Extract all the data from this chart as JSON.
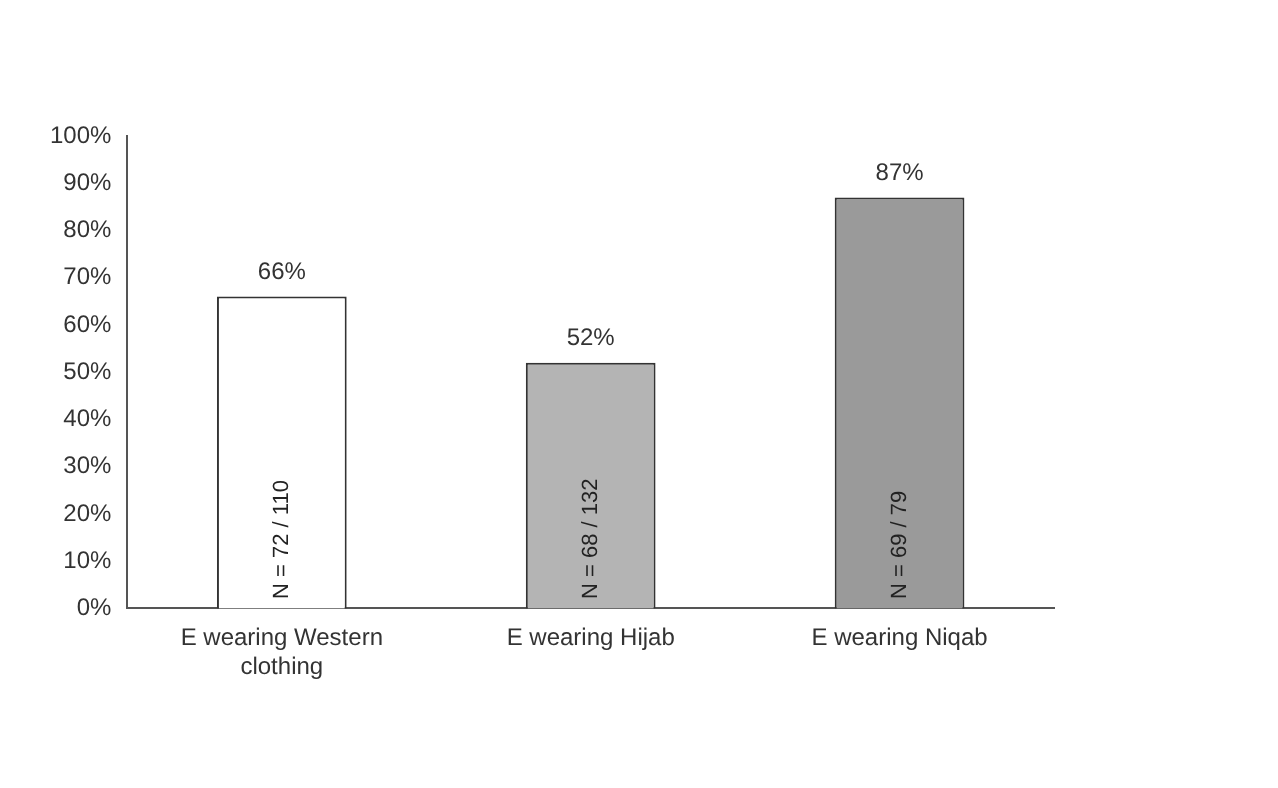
{
  "chart_data": {
    "type": "bar",
    "categories": [
      "E wearing Western clothing",
      "E wearing Hijab",
      "E wearing Niqab"
    ],
    "values": [
      66,
      52,
      87
    ],
    "colors": [
      "#ffffff",
      "#b4b4b4",
      "#9a9a9a"
    ],
    "value_labels": [
      "66%",
      "52%",
      "87%"
    ],
    "ylim": [
      0,
      100
    ],
    "yticks": [
      {
        "value": 0,
        "label": "0%"
      },
      {
        "value": 10,
        "label": "10%"
      },
      {
        "value": 20,
        "label": "20%"
      },
      {
        "value": 30,
        "label": "30%"
      },
      {
        "value": 40,
        "label": "40%"
      },
      {
        "value": 50,
        "label": "50%"
      },
      {
        "value": 60,
        "label": "60%"
      },
      {
        "value": 70,
        "label": "70%"
      },
      {
        "value": 80,
        "label": "80%"
      },
      {
        "value": 90,
        "label": "90%"
      },
      {
        "value": 100,
        "label": "100%"
      }
    ],
    "annotations": [
      {
        "text": "N = 72 / 110",
        "x": "E wearing Western clothing",
        "y": 2
      },
      {
        "text": "N = 68 / 132",
        "x": "E wearing Hijab",
        "y": 2
      },
      {
        "text": "N = 69 / 79",
        "x": "E wearing Niqab",
        "y": 2
      }
    ],
    "grid": false,
    "legend": false
  }
}
